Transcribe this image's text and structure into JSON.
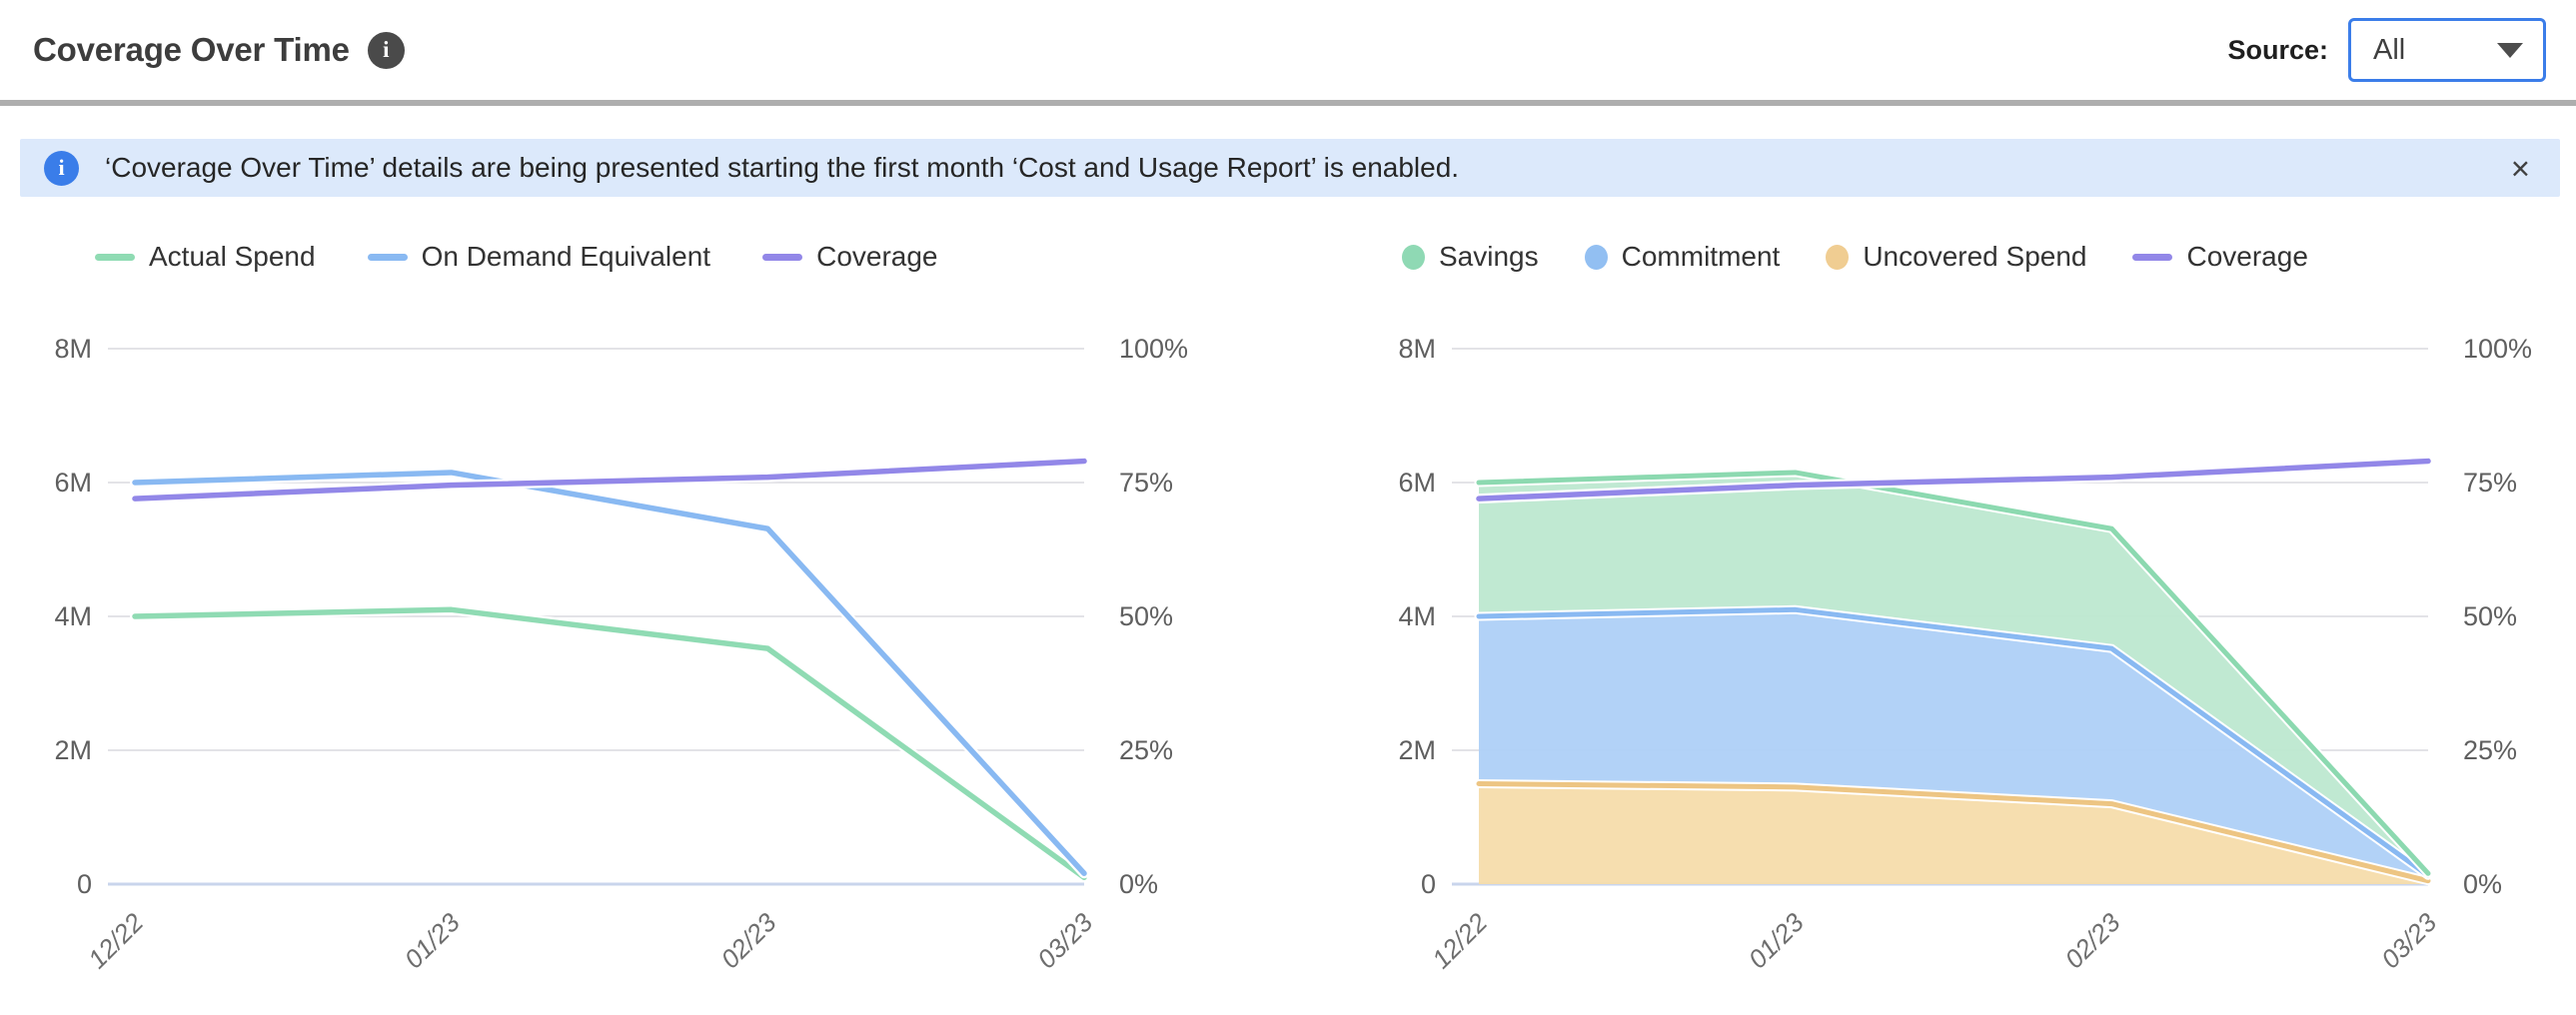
{
  "header": {
    "title": "Coverage Over Time",
    "info_icon": "i",
    "source_label": "Source:",
    "source_value": "All"
  },
  "banner": {
    "icon": "i",
    "text": "‘Coverage Over Time’ details are being presented starting the first month ‘Cost and Usage Report’ is enabled.",
    "close": "×"
  },
  "colors": {
    "gridline": "#e3e3e7",
    "zero_axis": "#c9d5ec",
    "green": "#8fdbb3",
    "green_fill": "#bde8d0",
    "blue": "#89b9f2",
    "blue_fill": "#aed0f7",
    "orange": "#edc583",
    "orange_fill": "#f5dcab",
    "purple": "#9287e8"
  },
  "chart_data": [
    {
      "type": "line",
      "title": "Coverage Over Time - spend lines",
      "x": [
        "12/22",
        "01/23",
        "02/23",
        "03/23"
      ],
      "left_axis": {
        "ticks": [
          "8M",
          "6M",
          "4M",
          "2M",
          "0"
        ],
        "max": 8,
        "unit": "M"
      },
      "right_axis": {
        "ticks": [
          "100%",
          "75%",
          "50%",
          "25%",
          "0%"
        ],
        "max": 100,
        "unit": "%"
      },
      "grid": true,
      "legend_position": "top",
      "series": [
        {
          "name": "Actual Spend",
          "axis": "left",
          "color": "#8fdbb3",
          "values": [
            4.0,
            4.1,
            3.52,
            0.1
          ]
        },
        {
          "name": "On Demand Equivalent",
          "axis": "left",
          "color": "#89b9f2",
          "values": [
            6.0,
            6.15,
            5.31,
            0.16
          ]
        },
        {
          "name": "Coverage",
          "axis": "right",
          "color": "#9287e8",
          "values": [
            72,
            74.5,
            76,
            79
          ]
        }
      ],
      "legend": [
        {
          "label": "Actual Spend",
          "swatch": "line",
          "color": "#8fdbb3"
        },
        {
          "label": "On Demand Equivalent",
          "swatch": "line",
          "color": "#89b9f2"
        },
        {
          "label": "Coverage",
          "swatch": "line",
          "color": "#9287e8"
        }
      ]
    },
    {
      "type": "area",
      "title": "Coverage Over Time - stacked savings",
      "x": [
        "12/22",
        "01/23",
        "02/23",
        "03/23"
      ],
      "left_axis": {
        "ticks": [
          "8M",
          "6M",
          "4M",
          "2M",
          "0"
        ],
        "max": 8,
        "unit": "M"
      },
      "right_axis": {
        "ticks": [
          "100%",
          "75%",
          "50%",
          "25%",
          "0%"
        ],
        "max": 100,
        "unit": "%"
      },
      "grid": true,
      "legend_position": "top",
      "series": [
        {
          "name": "Uncovered Spend",
          "axis": "left",
          "stack": true,
          "color": "#edc583",
          "fill": "#f5dcab",
          "values": [
            1.5,
            1.45,
            1.2,
            0.05
          ]
        },
        {
          "name": "Commitment",
          "axis": "left",
          "stack": true,
          "color": "#89b9f2",
          "fill": "#aed0f7",
          "values": [
            2.5,
            2.65,
            2.32,
            0.08
          ]
        },
        {
          "name": "Savings",
          "axis": "left",
          "stack": true,
          "color": "#8cd9b0",
          "fill": "#bde8d0",
          "values": [
            2.0,
            2.05,
            1.79,
            0.03
          ]
        },
        {
          "name": "Coverage",
          "axis": "right",
          "stack": false,
          "color": "#9287e8",
          "values": [
            72,
            74.5,
            76,
            79
          ]
        }
      ],
      "legend": [
        {
          "label": "Savings",
          "swatch": "dot",
          "color": "#8fd9b4"
        },
        {
          "label": "Commitment",
          "swatch": "dot",
          "color": "#92bff2"
        },
        {
          "label": "Uncovered Spend",
          "swatch": "dot",
          "color": "#f0cd92"
        },
        {
          "label": "Coverage",
          "swatch": "line",
          "color": "#9287e8"
        }
      ]
    }
  ]
}
